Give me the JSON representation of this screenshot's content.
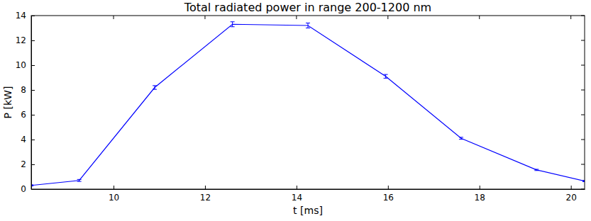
{
  "chart_data": {
    "type": "line",
    "title": "Total radiated power in range 200-1200 nm",
    "x_label": "t [ms]",
    "y_label": "P [kW]",
    "x": [
      8.2,
      9.25,
      10.9,
      12.6,
      14.25,
      15.95,
      17.6,
      19.25,
      20.3
    ],
    "values": [
      0.3,
      0.7,
      8.2,
      13.3,
      13.2,
      9.1,
      4.1,
      1.55,
      0.65
    ],
    "errors": [
      0.05,
      0.08,
      0.15,
      0.2,
      0.2,
      0.15,
      0.08,
      0.05,
      0.05
    ],
    "color": "#0000ff",
    "xlim": [
      8.2,
      20.3
    ],
    "ylim": [
      0,
      14
    ],
    "xticks": [
      10,
      12,
      14,
      16,
      18,
      20
    ],
    "yticks": [
      0,
      2,
      4,
      6,
      8,
      10,
      12,
      14
    ],
    "grid": false
  }
}
